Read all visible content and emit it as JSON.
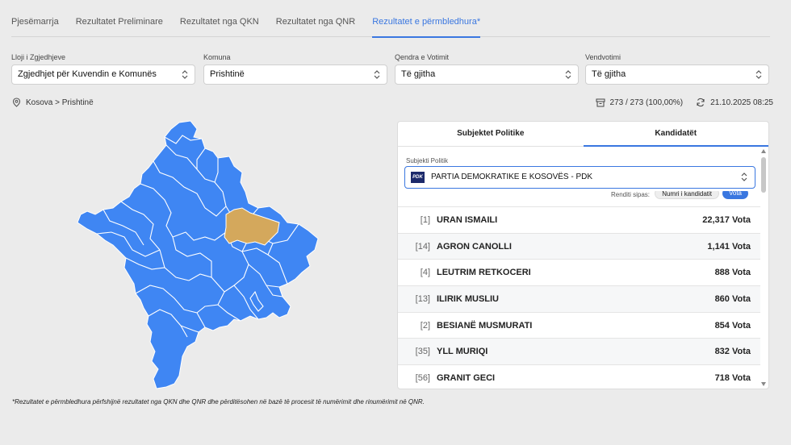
{
  "tabs": [
    {
      "label": "Pjesëmarrja"
    },
    {
      "label": "Rezultatet Preliminare"
    },
    {
      "label": "Rezultatet nga QKN"
    },
    {
      "label": "Rezultatet nga QNR"
    },
    {
      "label": "Rezultatet e përmbledhura*",
      "active": true
    }
  ],
  "filters": {
    "type": {
      "label": "Lloji i Zgjedhjeve",
      "value": "Zgjedhjet për Kuvendin e Komunës"
    },
    "municipality": {
      "label": "Komuna",
      "value": "Prishtinë"
    },
    "center": {
      "label": "Qendra e Votimit",
      "value": "Të gjitha"
    },
    "station": {
      "label": "Vendvotimi",
      "value": "Të gjitha"
    }
  },
  "breadcrumb": "Kosova > Prishtinë",
  "stats": {
    "stations": "273 / 273 (100,00%)",
    "updated": "21.10.2025 08:25"
  },
  "colors": {
    "accent": "#3a77e0",
    "map_fill": "#3f86f3",
    "map_selected": "#d4a85c"
  },
  "panel": {
    "tabs": [
      {
        "label": "Subjektet Politike"
      },
      {
        "label": "Kandidatët",
        "active": true
      }
    ],
    "party_label": "Subjekti Politik",
    "party_logo": "PDK",
    "party_value": "PARTIA DEMOKRATIKE E KOSOVËS - PDK",
    "sort_label": "Renditi sipas:",
    "sort_options": [
      "Numri i kandidatit",
      "Vota"
    ],
    "candidates": [
      {
        "rank": "[1]",
        "name": "URAN ISMAILI",
        "votes": "22,317 Vota"
      },
      {
        "rank": "[14]",
        "name": "AGRON CANOLLI",
        "votes": "1,141 Vota"
      },
      {
        "rank": "[4]",
        "name": "LEUTRIM RETKOCERI",
        "votes": "888 Vota"
      },
      {
        "rank": "[13]",
        "name": "ILIRIK MUSLIU",
        "votes": "860 Vota"
      },
      {
        "rank": "[2]",
        "name": "BESIANË MUSMURATI",
        "votes": "854 Vota"
      },
      {
        "rank": "[35]",
        "name": "YLL MURIQI",
        "votes": "832 Vota"
      },
      {
        "rank": "[56]",
        "name": "GRANIT GECI",
        "votes": "718 Vota"
      }
    ]
  },
  "footnote": "*Rezultatet e përmbledhura përfshijnë rezultatet nga QKN dhe QNR dhe përditësohen në bazë të procesit të numërimit dhe rinumërimit në QNR."
}
